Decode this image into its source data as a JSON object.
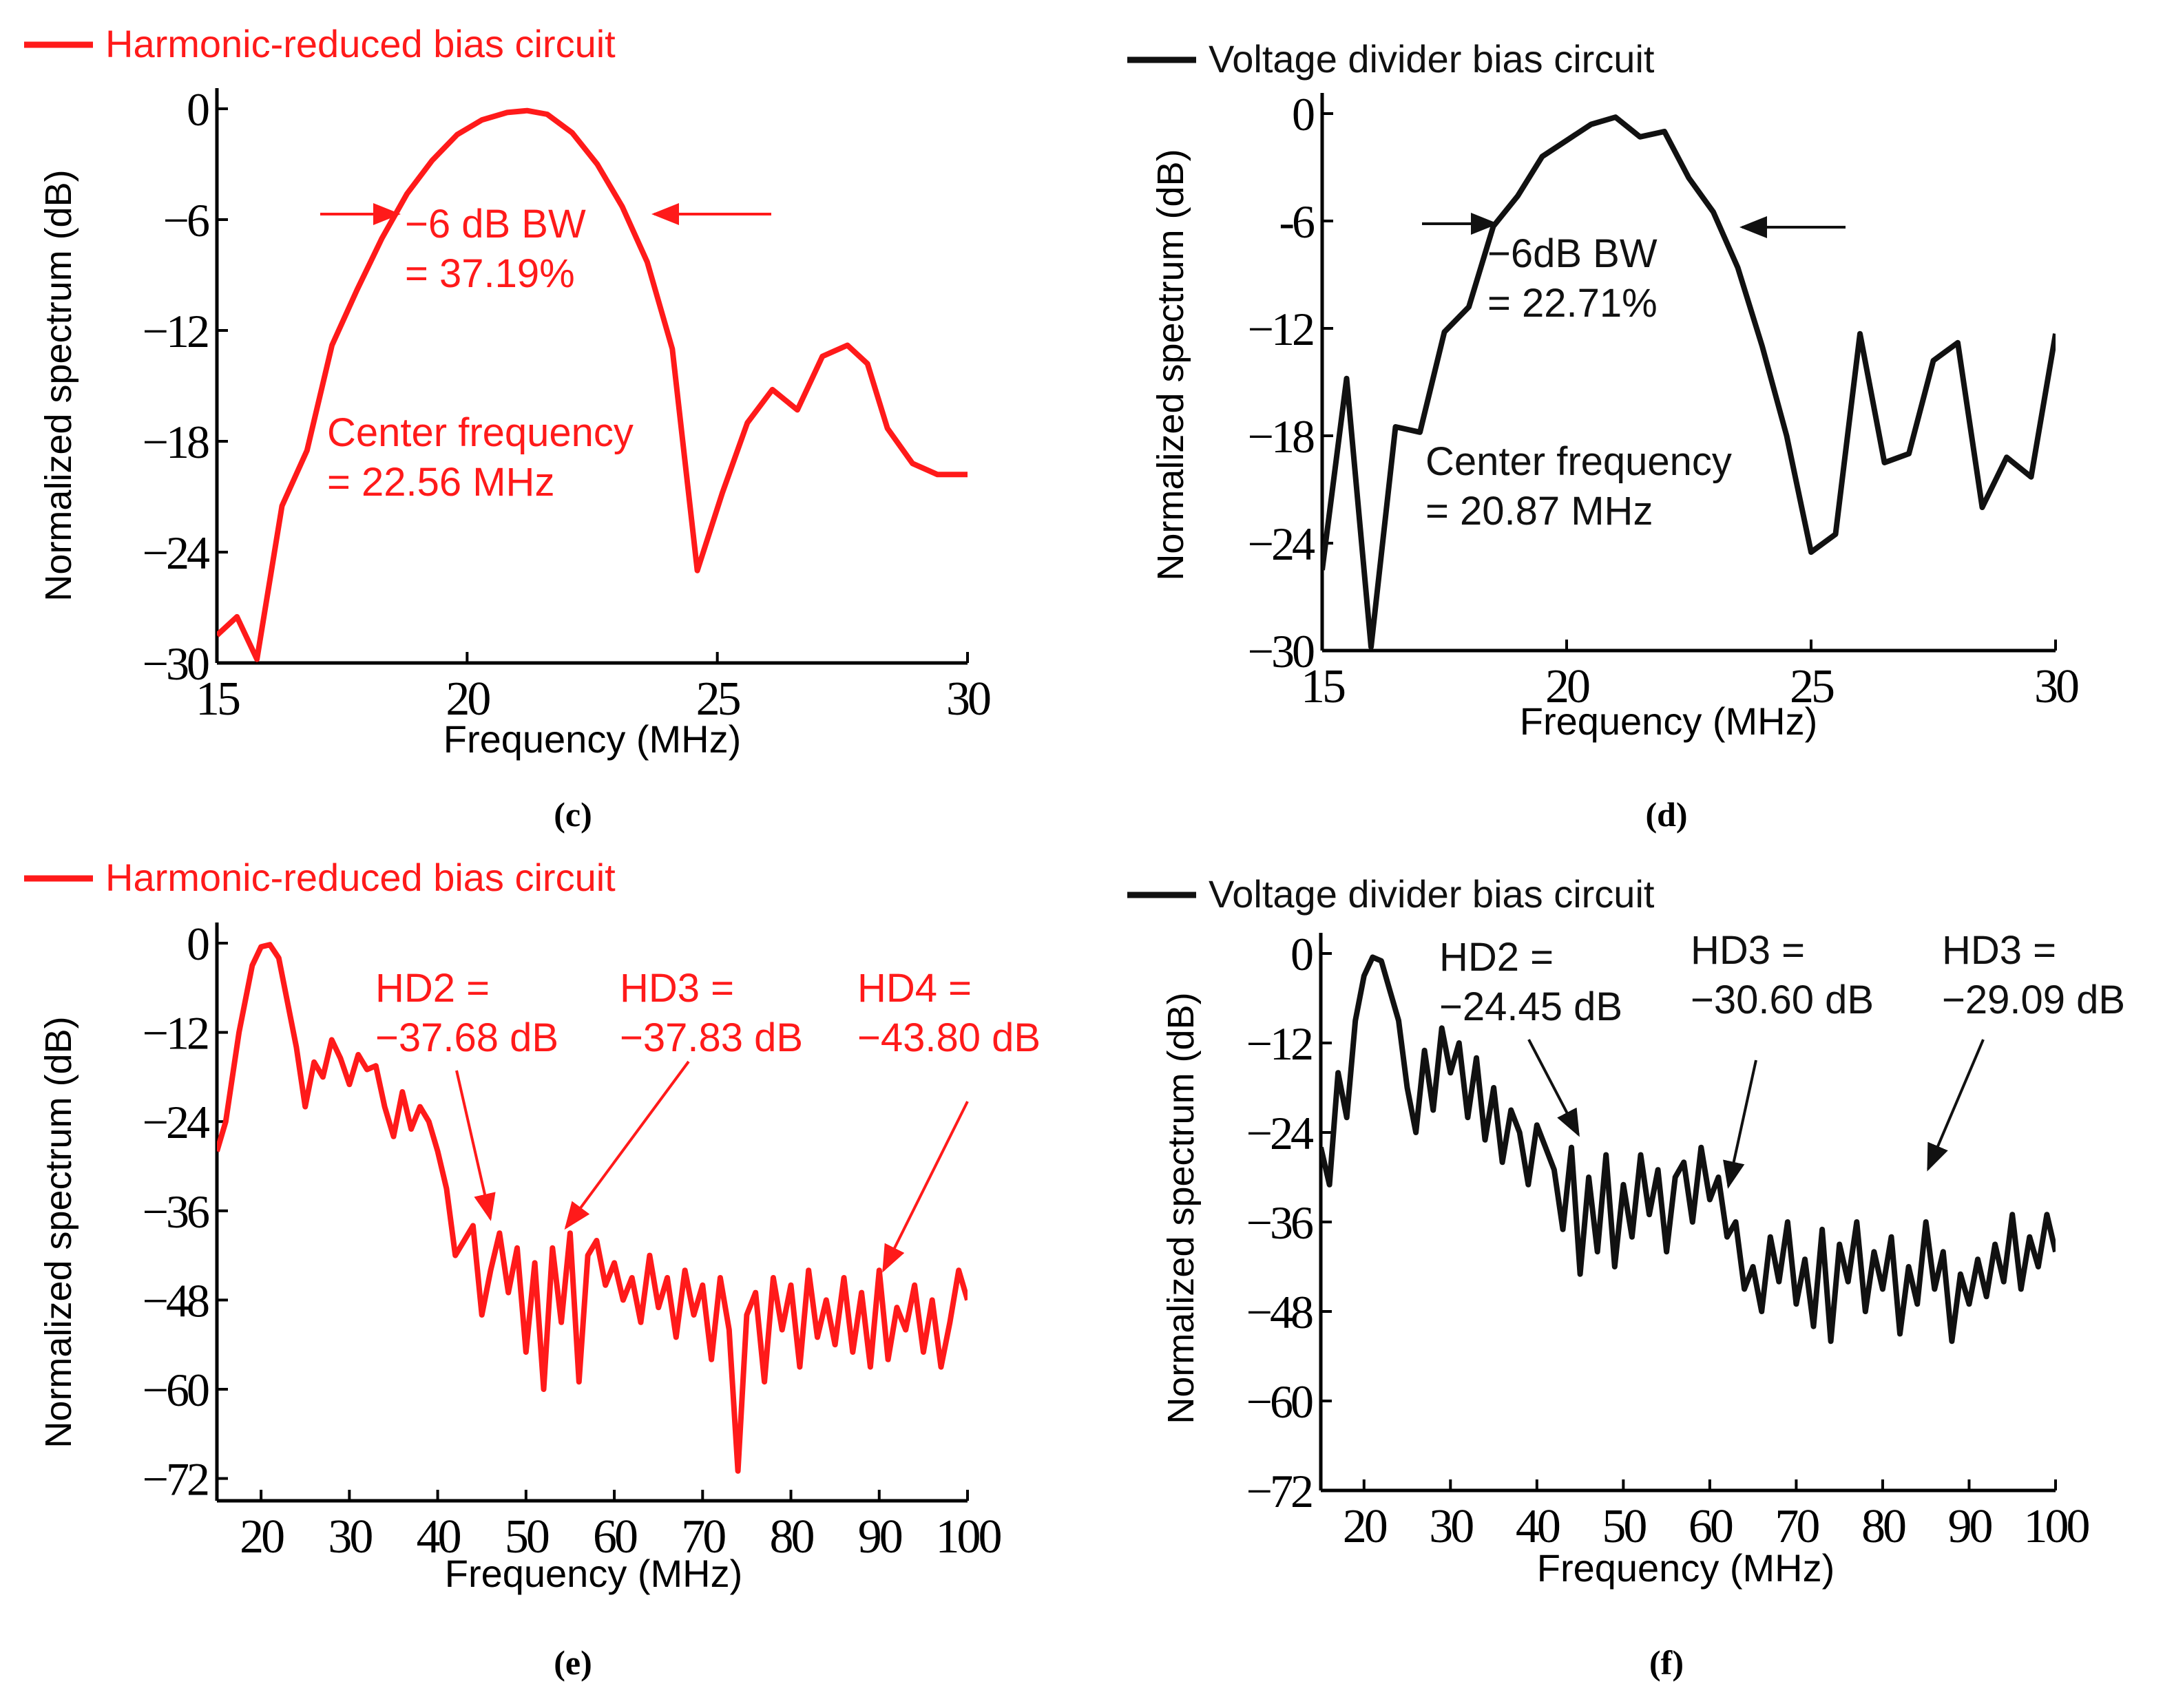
{
  "colors": {
    "red": "#ff1a1a",
    "black": "#111111"
  },
  "chart_data": [
    {
      "id": "c",
      "type": "line",
      "panel_label": "(c)",
      "legend": "Harmonic-reduced bias circuit",
      "color": "#ff1a1a",
      "xlabel": "Frequency (MHz)",
      "ylabel": "Normalized spectrum (dB)",
      "xlim": [
        15,
        30
      ],
      "ylim": [
        -30,
        0
      ],
      "xticks": [
        15,
        20,
        25,
        30
      ],
      "yticks": [
        0,
        -6,
        -12,
        -18,
        -24,
        -30
      ],
      "xtick_labels": [
        "15",
        "20",
        "25",
        "30"
      ],
      "ytick_labels": [
        "0",
        "−6",
        "−12",
        "−18",
        "−24",
        "−30"
      ],
      "series": [
        {
          "name": "Harmonic-reduced bias circuit",
          "x": [
            15.0,
            15.4,
            15.8,
            16.3,
            16.8,
            17.3,
            17.8,
            18.3,
            18.8,
            19.3,
            19.8,
            20.3,
            20.8,
            21.2,
            21.6,
            22.1,
            22.6,
            23.1,
            23.6,
            24.1,
            24.6,
            25.1,
            25.6,
            26.1,
            26.6,
            27.1,
            27.6,
            28.0,
            28.4,
            28.9,
            29.4,
            29.8,
            30.0
          ],
          "values": [
            -28.5,
            -27.5,
            -29.8,
            -21.5,
            -18.5,
            -12.8,
            -9.8,
            -7.0,
            -4.6,
            -2.8,
            -1.4,
            -0.6,
            -0.2,
            -0.1,
            -0.3,
            -1.3,
            -3.0,
            -5.3,
            -8.3,
            -13.0,
            -25.0,
            -20.8,
            -17.0,
            -15.2,
            -16.3,
            -13.4,
            -12.8,
            -13.8,
            -17.3,
            -19.2,
            -19.8,
            -19.8,
            -19.8
          ]
        }
      ],
      "annotations": [
        {
          "id": "bw1",
          "lines": [
            "−6 dB BW",
            "= 37.19%"
          ]
        },
        {
          "id": "cf1",
          "lines": [
            "Center frequency",
            "= 22.56 MHz"
          ]
        }
      ]
    },
    {
      "id": "d",
      "type": "line",
      "panel_label": "(d)",
      "legend": "Voltage divider bias circuit",
      "color": "#111111",
      "xlabel": "Frequency (MHz)",
      "ylabel": "Normalized spectrum (dB)",
      "xlim": [
        15,
        30
      ],
      "ylim": [
        -30,
        0
      ],
      "xticks": [
        15,
        20,
        25,
        30
      ],
      "yticks": [
        0,
        -6,
        -12,
        -18,
        -24,
        -30
      ],
      "xtick_labels": [
        "15",
        "20",
        "25",
        "30"
      ],
      "ytick_labels": [
        "0",
        "-6",
        "−12",
        "−18",
        "−24",
        "−30"
      ],
      "series": [
        {
          "name": "Voltage divider bias circuit",
          "x": [
            15.0,
            15.5,
            16.0,
            16.5,
            17.0,
            17.5,
            18.0,
            18.5,
            19.0,
            19.5,
            20.0,
            20.5,
            21.0,
            21.5,
            22.0,
            22.5,
            23.0,
            23.5,
            24.0,
            24.5,
            25.0,
            25.5,
            26.0,
            26.5,
            27.0,
            27.5,
            28.0,
            28.5,
            29.0,
            29.5,
            30.0
          ],
          "values": [
            -25.5,
            -14.8,
            -29.8,
            -17.5,
            -17.8,
            -12.2,
            -10.8,
            -6.3,
            -4.6,
            -2.4,
            -1.5,
            -0.6,
            -0.2,
            -1.3,
            -1.0,
            -3.6,
            -5.5,
            -8.6,
            -13.0,
            -18.0,
            -24.5,
            -23.5,
            -12.3,
            -19.5,
            -19.0,
            -13.8,
            -12.8,
            -22.0,
            -19.2,
            -20.3,
            -12.3
          ]
        }
      ],
      "annotations": [
        {
          "id": "bw2",
          "lines": [
            "−6dB BW",
            "= 22.71%"
          ]
        },
        {
          "id": "cf2",
          "lines": [
            "Center frequency",
            "= 20.87 MHz"
          ]
        }
      ]
    },
    {
      "id": "e",
      "type": "line",
      "panel_label": "(e)",
      "legend": "Harmonic-reduced bias circuit",
      "color": "#ff1a1a",
      "xlabel": "Frequency (MHz)",
      "ylabel": "Normalized spectrum (dB)",
      "xlim": [
        15,
        100
      ],
      "ylim": [
        -75,
        0
      ],
      "xticks": [
        20,
        30,
        40,
        50,
        60,
        70,
        80,
        90,
        100
      ],
      "yticks": [
        0,
        -12,
        -24,
        -36,
        -48,
        -60,
        -72
      ],
      "xtick_labels": [
        "20",
        "30",
        "40",
        "50",
        "60",
        "70",
        "80",
        "90",
        "100"
      ],
      "ytick_labels": [
        "0",
        "−12",
        "−24",
        "−36",
        "−48",
        "−60",
        "−72"
      ],
      "series": [
        {
          "name": "Harmonic-reduced bias circuit",
          "x": [
            15.0,
            16.0,
            17.5,
            19.0,
            20.0,
            21.0,
            22.0,
            23.0,
            24.0,
            25.0,
            26.0,
            27.0,
            28.0,
            29.0,
            30.0,
            31.0,
            32.0,
            33.0,
            34.0,
            35.0,
            36.0,
            37.0,
            38.0,
            39.0,
            40.0,
            41.0,
            42.0,
            43.0,
            44.0,
            45.0,
            46.0,
            47.0,
            48.0,
            49.0,
            50.0,
            51.0,
            52.0,
            53.0,
            54.0,
            55.0,
            56.0,
            57.0,
            58.0,
            59.0,
            60.0,
            61.0,
            62.0,
            63.0,
            64.0,
            65.0,
            66.0,
            67.0,
            68.0,
            69.0,
            70.0,
            71.0,
            72.0,
            73.0,
            74.0,
            75.0,
            76.0,
            77.0,
            78.0,
            79.0,
            80.0,
            81.0,
            82.0,
            83.0,
            84.0,
            85.0,
            86.0,
            87.0,
            88.0,
            89.0,
            90.0,
            91.0,
            92.0,
            93.0,
            94.0,
            95.0,
            96.0,
            97.0,
            98.0,
            99.0,
            100.0
          ],
          "values": [
            -28.0,
            -24.0,
            -12.0,
            -3.0,
            -0.5,
            -0.2,
            -2.0,
            -8.0,
            -14.0,
            -22.0,
            -16.0,
            -18.0,
            -13.0,
            -15.5,
            -19.0,
            -15.0,
            -17.0,
            -16.5,
            -22.0,
            -26.0,
            -20.0,
            -25.0,
            -22.0,
            -24.0,
            -28.0,
            -33.0,
            -42.0,
            -40.0,
            -38.0,
            -50.0,
            -44.0,
            -39.0,
            -47.0,
            -41.0,
            -55.0,
            -43.0,
            -60.0,
            -41.0,
            -51.0,
            -39.0,
            -59.0,
            -42.0,
            -40.0,
            -46.0,
            -43.0,
            -48.0,
            -45.0,
            -51.0,
            -42.0,
            -49.0,
            -45.0,
            -53.0,
            -44.0,
            -50.0,
            -46.0,
            -56.0,
            -45.0,
            -52.0,
            -71.0,
            -50.0,
            -47.0,
            -59.0,
            -45.0,
            -52.0,
            -46.0,
            -57.0,
            -44.0,
            -53.0,
            -48.0,
            -54.0,
            -45.0,
            -55.0,
            -47.0,
            -57.0,
            -44.0,
            -56.0,
            -49.0,
            -52.0,
            -46.0,
            -55.0,
            -48.0,
            -57.0,
            -51.0,
            -44.0,
            -48.0
          ]
        }
      ],
      "annotations": [
        {
          "id": "hd2e",
          "lines": [
            "HD2 =",
            "−37.68 dB"
          ]
        },
        {
          "id": "hd3e",
          "lines": [
            "HD3 =",
            "−37.83 dB"
          ]
        },
        {
          "id": "hd4e",
          "lines": [
            "HD4 =",
            "−43.80 dB"
          ]
        }
      ]
    },
    {
      "id": "f",
      "type": "line",
      "panel_label": "(f)",
      "legend": "Voltage divider bias circuit",
      "color": "#111111",
      "xlabel": "Frequency (MHz)",
      "ylabel": "Normalized spectrum (dB)",
      "xlim": [
        15,
        100
      ],
      "ylim": [
        -72,
        0
      ],
      "xticks": [
        20,
        30,
        40,
        50,
        60,
        70,
        80,
        90,
        100
      ],
      "yticks": [
        0,
        -12,
        -24,
        -36,
        -48,
        -60,
        -72
      ],
      "xtick_labels": [
        "20",
        "30",
        "40",
        "50",
        "60",
        "70",
        "80",
        "90",
        "100"
      ],
      "ytick_labels": [
        "0",
        "−12",
        "−24",
        "−36",
        "−48",
        "−60",
        "−72"
      ],
      "series": [
        {
          "name": "Voltage divider bias circuit",
          "x": [
            15.0,
            16.0,
            17.0,
            18.0,
            19.0,
            20.0,
            21.0,
            22.0,
            23.0,
            24.0,
            25.0,
            26.0,
            27.0,
            28.0,
            29.0,
            30.0,
            31.0,
            32.0,
            33.0,
            34.0,
            35.0,
            36.0,
            37.0,
            38.0,
            39.0,
            40.0,
            41.0,
            42.0,
            43.0,
            44.0,
            45.0,
            46.0,
            47.0,
            48.0,
            49.0,
            50.0,
            51.0,
            52.0,
            53.0,
            54.0,
            55.0,
            56.0,
            57.0,
            58.0,
            59.0,
            60.0,
            61.0,
            62.0,
            63.0,
            64.0,
            65.0,
            66.0,
            67.0,
            68.0,
            69.0,
            70.0,
            71.0,
            72.0,
            73.0,
            74.0,
            75.0,
            76.0,
            77.0,
            78.0,
            79.0,
            80.0,
            81.0,
            82.0,
            83.0,
            84.0,
            85.0,
            86.0,
            87.0,
            88.0,
            89.0,
            90.0,
            91.0,
            92.0,
            93.0,
            94.0,
            95.0,
            96.0,
            97.0,
            98.0,
            99.0,
            100.0
          ],
          "values": [
            -26.0,
            -31.0,
            -16.0,
            -22.0,
            -9.0,
            -3.0,
            -0.5,
            -1.0,
            -5.0,
            -9.0,
            -18.0,
            -24.0,
            -13.0,
            -21.0,
            -10.0,
            -16.0,
            -12.0,
            -22.0,
            -14.0,
            -25.0,
            -18.0,
            -28.0,
            -21.0,
            -24.0,
            -31.0,
            -23.0,
            -26.0,
            -29.0,
            -37.0,
            -26.0,
            -43.0,
            -30.0,
            -40.0,
            -27.0,
            -42.0,
            -31.0,
            -38.0,
            -27.0,
            -35.0,
            -29.0,
            -40.0,
            -30.0,
            -28.0,
            -36.0,
            -26.0,
            -33.0,
            -30.0,
            -38.0,
            -36.0,
            -45.0,
            -42.0,
            -48.0,
            -38.0,
            -44.0,
            -36.0,
            -47.0,
            -41.0,
            -50.0,
            -37.0,
            -52.0,
            -39.0,
            -44.0,
            -36.0,
            -48.0,
            -40.0,
            -45.0,
            -38.0,
            -51.0,
            -42.0,
            -47.0,
            -36.0,
            -45.0,
            -40.0,
            -52.0,
            -43.0,
            -47.0,
            -41.0,
            -46.0,
            -39.0,
            -44.0,
            -35.0,
            -45.0,
            -38.0,
            -42.0,
            -35.0,
            -40.0
          ]
        }
      ],
      "annotations": [
        {
          "id": "hd2f",
          "lines": [
            "HD2 =",
            "−24.45 dB"
          ]
        },
        {
          "id": "hd3f",
          "lines": [
            "HD3 =",
            "−30.60 dB"
          ]
        },
        {
          "id": "hd3f2",
          "lines": [
            "HD3 =",
            "−29.09 dB"
          ]
        }
      ]
    }
  ]
}
